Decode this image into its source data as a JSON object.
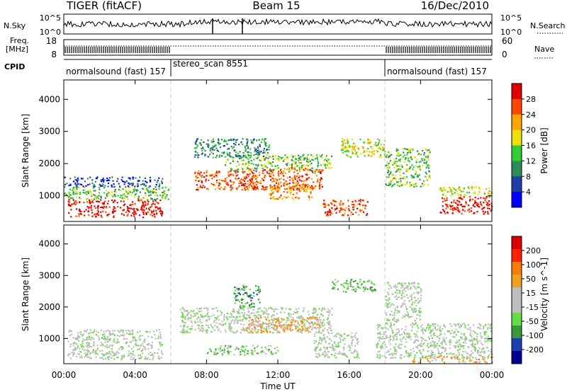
{
  "header": {
    "radar": "TIGER (fitACF)",
    "beam": "Beam 15",
    "date": "16/Dec/2010"
  },
  "panels": {
    "nsky_label": "N.Sky",
    "nsearch_label": "N.Search",
    "freq_label_line1": "Freq.",
    "freq_label_line2": "[MHz]",
    "nave_label": "Nave",
    "cpid_label": "CPID",
    "nsky_ticks": [
      "10^5",
      "10^0"
    ],
    "nsearch_ticks": [
      "10^5",
      "10^0"
    ],
    "freq_ticks": [
      "18",
      "8"
    ],
    "nave_ticks": [
      "60",
      "0"
    ]
  },
  "cpid_segments": [
    {
      "label": "normalsound (fast) 157",
      "start": 0,
      "end": 6
    },
    {
      "label": "stereo_scan 8551",
      "start": 6,
      "end": 18
    },
    {
      "label": "normalsound (fast) 157",
      "start": 18,
      "end": 24
    }
  ],
  "colors": {
    "power": [
      "#0000ff",
      "#1e3fa8",
      "#2e8b57",
      "#32cd32",
      "#f0e000",
      "#ffa500",
      "#ff4500",
      "#e00000"
    ],
    "velocity": [
      "#000090",
      "#1a3fb0",
      "#3a9a3a",
      "#66dd44",
      "#bebebe",
      "#bebebe",
      "#f2a020",
      "#ff7a00",
      "#ff2000",
      "#dd0000"
    ]
  },
  "chart_data": [
    {
      "type": "heatmap",
      "name": "power",
      "xlabel": "Time UT",
      "ylabel": "Slant Range [km]",
      "colorbar_label": "Power [dB]",
      "colorbar_ticks": [
        "28",
        "24",
        "20",
        "16",
        "12",
        "8",
        "4"
      ],
      "x_ticks": [
        "00:00",
        "04:00",
        "08:00",
        "12:00",
        "16:00",
        "20:00",
        "00:00"
      ],
      "y_ticks": [
        "4000",
        "3000",
        "2000",
        "1000"
      ],
      "xlim": [
        0,
        24
      ],
      "ylim": [
        200,
        4600
      ],
      "regions": [
        {
          "t0": 0.2,
          "t1": 5.5,
          "r0": 350,
          "r1": 900,
          "level": 7
        },
        {
          "t0": 0.0,
          "t1": 6.0,
          "r0": 900,
          "r1": 1300,
          "level": 3
        },
        {
          "t0": 0.0,
          "t1": 5.5,
          "r0": 1300,
          "r1": 1600,
          "level": 1
        },
        {
          "t0": 7.3,
          "t1": 11.0,
          "r0": 1200,
          "r1": 1800,
          "level": 6
        },
        {
          "t0": 10.0,
          "t1": 14.5,
          "r0": 1200,
          "r1": 1900,
          "level": 6
        },
        {
          "t0": 11.5,
          "t1": 14.0,
          "r0": 900,
          "r1": 1400,
          "level": 5
        },
        {
          "t0": 9.0,
          "t1": 15.0,
          "r0": 1800,
          "r1": 2300,
          "level": 3
        },
        {
          "t0": 7.3,
          "t1": 11.5,
          "r0": 2200,
          "r1": 2800,
          "level": 2
        },
        {
          "t0": 14.5,
          "t1": 17.0,
          "r0": 400,
          "r1": 900,
          "level": 6
        },
        {
          "t0": 15.5,
          "t1": 18.0,
          "r0": 2200,
          "r1": 2800,
          "level": 4
        },
        {
          "t0": 18.0,
          "t1": 20.5,
          "r0": 1300,
          "r1": 2500,
          "level": 3
        },
        {
          "t0": 21.0,
          "t1": 24.0,
          "r0": 450,
          "r1": 1000,
          "level": 7
        },
        {
          "t0": 21.0,
          "t1": 24.0,
          "r0": 1000,
          "r1": 1300,
          "level": 4
        }
      ]
    },
    {
      "type": "heatmap",
      "name": "velocity",
      "xlabel": "Time UT",
      "ylabel": "Slant Range [km]",
      "colorbar_label": "Velocity [m s^-1]",
      "colorbar_ticks": [
        "200",
        "100",
        "50",
        "15",
        "-15",
        "-50",
        "-100",
        "-200"
      ],
      "x_ticks": [
        "00:00",
        "04:00",
        "08:00",
        "12:00",
        "16:00",
        "20:00",
        "00:00"
      ],
      "y_ticks": [
        "4000",
        "3000",
        "2000",
        "1000"
      ],
      "xlim": [
        0,
        24
      ],
      "ylim": [
        200,
        4600
      ],
      "regions": [
        {
          "t0": 0.2,
          "t1": 5.5,
          "r0": 350,
          "r1": 1300,
          "level": 4
        },
        {
          "t0": 6.5,
          "t1": 15.0,
          "r0": 1200,
          "r1": 2000,
          "level": 4
        },
        {
          "t0": 10.0,
          "t1": 14.5,
          "r0": 1200,
          "r1": 1700,
          "level": 6
        },
        {
          "t0": 9.5,
          "t1": 11.0,
          "r0": 2000,
          "r1": 2700,
          "level": 2
        },
        {
          "t0": 8.0,
          "t1": 12.0,
          "r0": 500,
          "r1": 800,
          "level": 3
        },
        {
          "t0": 14.0,
          "t1": 16.5,
          "r0": 400,
          "r1": 1200,
          "level": 4
        },
        {
          "t0": 15.0,
          "t1": 17.5,
          "r0": 2500,
          "r1": 2900,
          "level": 3
        },
        {
          "t0": 17.5,
          "t1": 24.0,
          "r0": 400,
          "r1": 1500,
          "level": 4
        },
        {
          "t0": 18.0,
          "t1": 20.0,
          "r0": 1500,
          "r1": 2800,
          "level": 4
        },
        {
          "t0": 19.5,
          "t1": 24.0,
          "r0": 250,
          "r1": 450,
          "level": 6
        }
      ]
    }
  ]
}
